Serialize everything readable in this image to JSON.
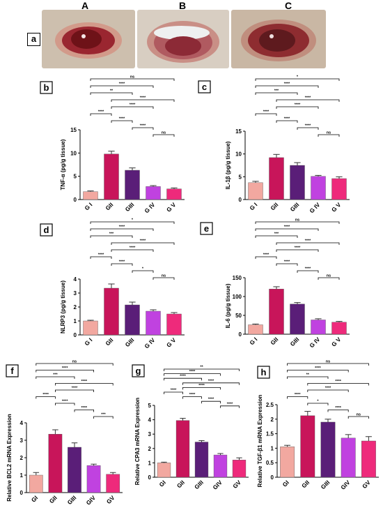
{
  "photo_labels": [
    "A",
    "B",
    "C"
  ],
  "photo_panel_tag": "a",
  "chart_data": [
    {
      "type": "bar",
      "panel": "b",
      "categories": [
        "G I",
        "GII",
        "GIII",
        "G IV",
        "G V"
      ],
      "values": [
        1.7,
        9.8,
        6.3,
        2.8,
        2.3
      ],
      "errors": [
        0.15,
        0.6,
        0.5,
        0.2,
        0.2
      ],
      "ylabel": "TNF-α (pg/g tissue)",
      "ylim": [
        0,
        15
      ],
      "yticks": [
        0,
        5,
        10,
        15
      ],
      "colors": [
        "#f2a8a0",
        "#c8155a",
        "#5a1e78",
        "#c042e0",
        "#ee2a7b"
      ],
      "brackets": [
        {
          "a": 0,
          "b": 4,
          "label": "ns"
        },
        {
          "a": 0,
          "b": 3,
          "label": "****"
        },
        {
          "a": 0,
          "b": 2,
          "label": "**"
        },
        {
          "a": 1,
          "b": 4,
          "label": "****"
        },
        {
          "a": 1,
          "b": 3,
          "label": "****"
        },
        {
          "a": 0,
          "b": 1,
          "label": "****"
        },
        {
          "a": 1,
          "b": 2,
          "label": "****"
        },
        {
          "a": 2,
          "b": 3,
          "label": "****"
        },
        {
          "a": 3,
          "b": 4,
          "label": "ns"
        }
      ]
    },
    {
      "type": "bar",
      "panel": "c",
      "categories": [
        "G I",
        "GII",
        "GIII",
        "G IV",
        "G V"
      ],
      "values": [
        3.7,
        9.2,
        7.5,
        5.1,
        4.6
      ],
      "errors": [
        0.3,
        0.7,
        0.6,
        0.2,
        0.4
      ],
      "ylabel": "IL-1β (pg/g tissue)",
      "ylim": [
        0,
        15
      ],
      "yticks": [
        0,
        5,
        10,
        15
      ],
      "colors": [
        "#f2a8a0",
        "#c8155a",
        "#5a1e78",
        "#c042e0",
        "#ee2a7b"
      ],
      "brackets": [
        {
          "a": 0,
          "b": 4,
          "label": "*"
        },
        {
          "a": 0,
          "b": 3,
          "label": "****"
        },
        {
          "a": 0,
          "b": 2,
          "label": "***"
        },
        {
          "a": 1,
          "b": 4,
          "label": "****"
        },
        {
          "a": 1,
          "b": 3,
          "label": "****"
        },
        {
          "a": 0,
          "b": 1,
          "label": "****"
        },
        {
          "a": 1,
          "b": 2,
          "label": "****"
        },
        {
          "a": 2,
          "b": 3,
          "label": "****"
        },
        {
          "a": 3,
          "b": 4,
          "label": "ns"
        }
      ]
    },
    {
      "type": "bar",
      "panel": "d",
      "categories": [
        "G I",
        "GII",
        "GIII",
        "G IV",
        "G V"
      ],
      "values": [
        1.0,
        3.35,
        2.15,
        1.7,
        1.5
      ],
      "errors": [
        0.05,
        0.3,
        0.2,
        0.1,
        0.1
      ],
      "ylabel": "NLRP3 (pg/g tissue)",
      "ylim": [
        0,
        4
      ],
      "yticks": [
        0,
        1,
        2,
        3,
        4
      ],
      "colors": [
        "#f2a8a0",
        "#c8155a",
        "#5a1e78",
        "#c042e0",
        "#ee2a7b"
      ],
      "brackets": [
        {
          "a": 0,
          "b": 4,
          "label": "*"
        },
        {
          "a": 0,
          "b": 3,
          "label": "****"
        },
        {
          "a": 0,
          "b": 2,
          "label": "***"
        },
        {
          "a": 1,
          "b": 4,
          "label": "****"
        },
        {
          "a": 1,
          "b": 3,
          "label": "****"
        },
        {
          "a": 0,
          "b": 1,
          "label": "****"
        },
        {
          "a": 1,
          "b": 2,
          "label": "****"
        },
        {
          "a": 2,
          "b": 3,
          "label": "*"
        },
        {
          "a": 3,
          "b": 4,
          "label": "ns"
        }
      ]
    },
    {
      "type": "bar",
      "panel": "e",
      "categories": [
        "G I",
        "GII",
        "GIII",
        "G IV",
        "G V"
      ],
      "values": [
        25,
        120,
        80,
        38,
        32
      ],
      "errors": [
        2,
        6,
        4,
        3,
        2
      ],
      "ylabel": "IL-6 (pg/g tissue)",
      "ylim": [
        0,
        150
      ],
      "yticks": [
        0,
        50,
        100,
        150
      ],
      "colors": [
        "#f2a8a0",
        "#c8155a",
        "#5a1e78",
        "#c042e0",
        "#ee2a7b"
      ],
      "brackets": [
        {
          "a": 0,
          "b": 4,
          "label": "ns"
        },
        {
          "a": 0,
          "b": 3,
          "label": "****"
        },
        {
          "a": 0,
          "b": 2,
          "label": "***"
        },
        {
          "a": 1,
          "b": 4,
          "label": "****"
        },
        {
          "a": 1,
          "b": 3,
          "label": "****"
        },
        {
          "a": 0,
          "b": 1,
          "label": "****"
        },
        {
          "a": 1,
          "b": 2,
          "label": "****"
        },
        {
          "a": 2,
          "b": 3,
          "label": "****"
        },
        {
          "a": 3,
          "b": 4,
          "label": "ns"
        }
      ]
    },
    {
      "type": "bar",
      "panel": "f",
      "categories": [
        "GI",
        "GII",
        "GIII",
        "GIV",
        "GV"
      ],
      "values": [
        1.0,
        3.35,
        2.6,
        1.55,
        1.05
      ],
      "errors": [
        0.15,
        0.25,
        0.25,
        0.08,
        0.1
      ],
      "ylabel": "Relative BCL2 mRNA Expression",
      "ylim": [
        0,
        4
      ],
      "yticks": [
        0,
        1,
        2,
        3,
        4
      ],
      "colors": [
        "#f2a8a0",
        "#c8155a",
        "#5a1e78",
        "#c042e0",
        "#ee2a7b"
      ],
      "brackets": [
        {
          "a": 0,
          "b": 4,
          "label": "ns"
        },
        {
          "a": 0,
          "b": 3,
          "label": "****"
        },
        {
          "a": 0,
          "b": 2,
          "label": "***"
        },
        {
          "a": 1,
          "b": 4,
          "label": "****"
        },
        {
          "a": 1,
          "b": 3,
          "label": "****"
        },
        {
          "a": 0,
          "b": 1,
          "label": "****"
        },
        {
          "a": 1,
          "b": 2,
          "label": "****"
        },
        {
          "a": 2,
          "b": 3,
          "label": "****"
        },
        {
          "a": 3,
          "b": 4,
          "label": "***"
        }
      ]
    },
    {
      "type": "bar",
      "panel": "g",
      "categories": [
        "GI",
        "GII",
        "GIII",
        "GIV",
        "GV"
      ],
      "values": [
        1.0,
        3.95,
        2.45,
        1.55,
        1.2
      ],
      "errors": [
        0.05,
        0.15,
        0.1,
        0.1,
        0.15
      ],
      "ylabel": "Relative CPA3 mRNA Expression",
      "ylim": [
        0,
        5
      ],
      "yticks": [
        0,
        1,
        2,
        3,
        4,
        5
      ],
      "colors": [
        "#f2a8a0",
        "#c8155a",
        "#5a1e78",
        "#c042e0",
        "#ee2a7b"
      ],
      "brackets": [
        {
          "a": 0,
          "b": 4,
          "label": "**"
        },
        {
          "a": 0,
          "b": 3,
          "label": "****"
        },
        {
          "a": 0,
          "b": 2,
          "label": "****"
        },
        {
          "a": 1,
          "b": 4,
          "label": "****"
        },
        {
          "a": 1,
          "b": 3,
          "label": "****"
        },
        {
          "a": 0,
          "b": 1,
          "label": "****"
        },
        {
          "a": 1,
          "b": 2,
          "label": "****"
        },
        {
          "a": 2,
          "b": 3,
          "label": "****"
        },
        {
          "a": 3,
          "b": 4,
          "label": "****"
        }
      ]
    },
    {
      "type": "bar",
      "panel": "h",
      "categories": [
        "GI",
        "GII",
        "GIII",
        "GIV",
        "GV"
      ],
      "values": [
        1.05,
        2.12,
        1.9,
        1.35,
        1.25
      ],
      "errors": [
        0.05,
        0.15,
        0.1,
        0.12,
        0.15
      ],
      "ylabel": "Relative TGF-β1 mRNA Expression",
      "ylim": [
        0,
        2.5
      ],
      "yticks": [
        0,
        0.5,
        1.0,
        1.5,
        2.0,
        2.5
      ],
      "colors": [
        "#f2a8a0",
        "#c8155a",
        "#5a1e78",
        "#c042e0",
        "#ee2a7b"
      ],
      "brackets": [
        {
          "a": 0,
          "b": 4,
          "label": "ns"
        },
        {
          "a": 0,
          "b": 3,
          "label": "****"
        },
        {
          "a": 0,
          "b": 2,
          "label": "**"
        },
        {
          "a": 1,
          "b": 4,
          "label": "****"
        },
        {
          "a": 1,
          "b": 3,
          "label": "****"
        },
        {
          "a": 0,
          "b": 1,
          "label": "****"
        },
        {
          "a": 1,
          "b": 2,
          "label": "*"
        },
        {
          "a": 2,
          "b": 3,
          "label": "****"
        },
        {
          "a": 3,
          "b": 4,
          "label": "ns"
        }
      ]
    }
  ]
}
